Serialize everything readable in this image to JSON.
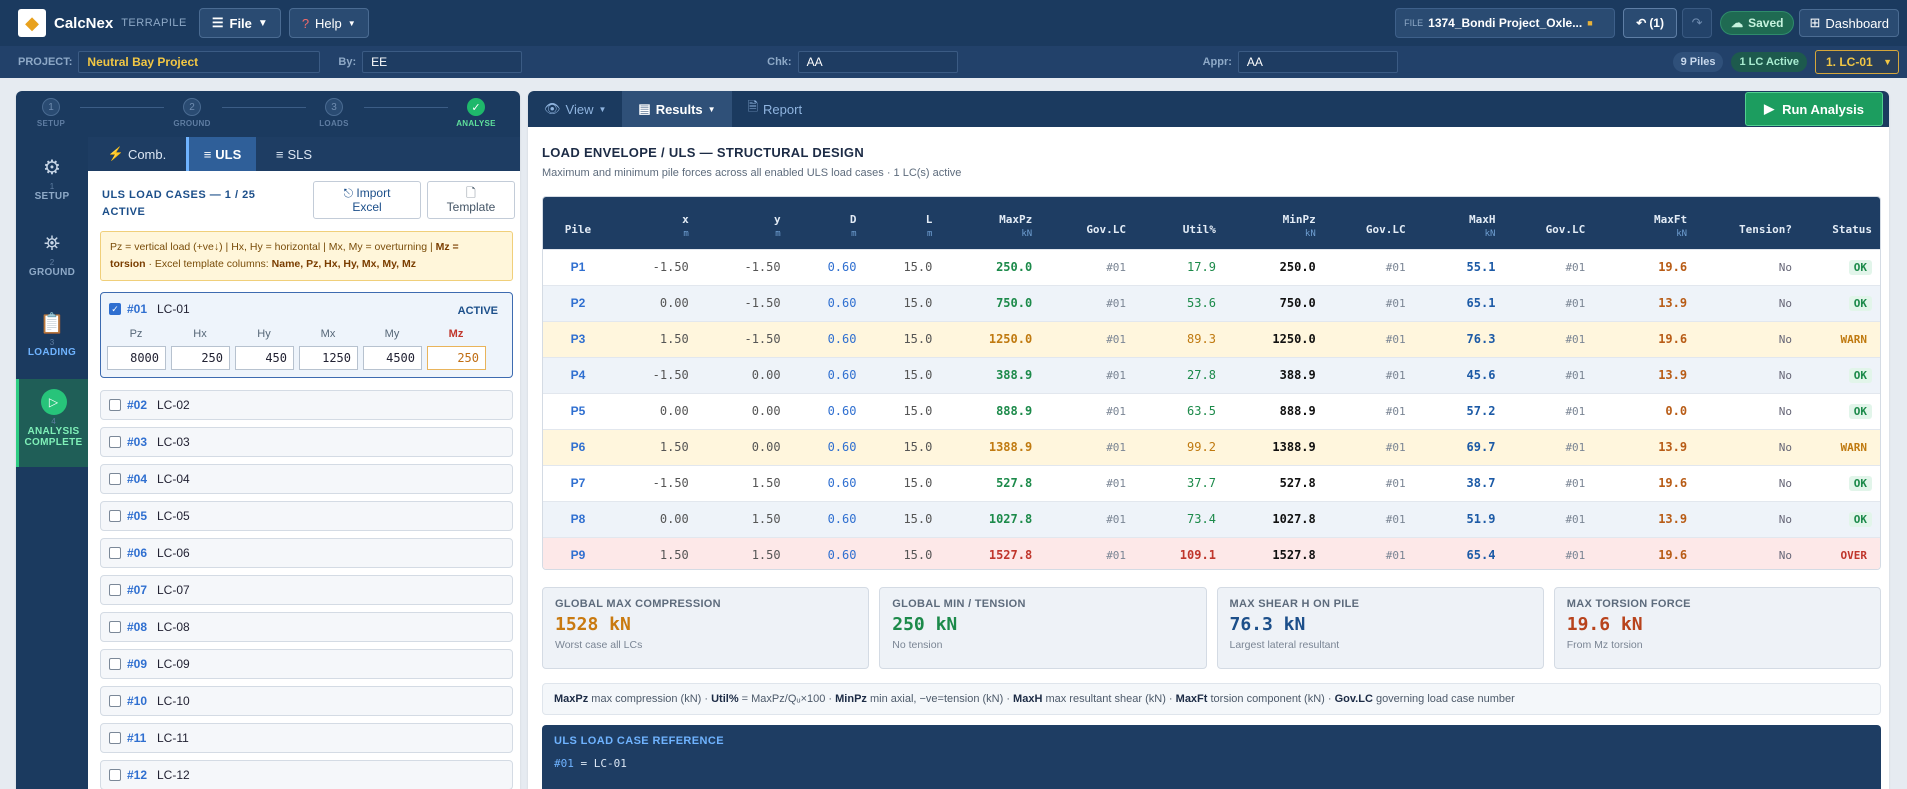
{
  "app": {
    "name": "CalcNex",
    "sub": "TERRAPILE",
    "file_menu": "File",
    "help_menu": "Help",
    "file_label": "FILE",
    "file_name": "1374_Bondi Project_Oxle...",
    "undo_label": "(1)",
    "saved_label": "Saved",
    "dashboard_label": "Dashboard"
  },
  "project": {
    "project_label": "PROJECT:",
    "project_value": "Neutral Bay Project",
    "by_label": "By:",
    "by_value": "EE",
    "chk_label": "Chk:",
    "chk_value": "AA",
    "appr_label": "Appr:",
    "appr_value": "AA",
    "piles_pill": "9 Piles",
    "lc_pill": "1 LC Active",
    "lc_select": "1. LC-01"
  },
  "stepper": {
    "steps": [
      {
        "num": "1",
        "label": "SETUP"
      },
      {
        "num": "2",
        "label": "GROUND"
      },
      {
        "num": "3",
        "label": "LOADS"
      },
      {
        "num": "✓",
        "label": "ANALYSE"
      }
    ]
  },
  "sidenav": [
    {
      "num": "1",
      "label": "SETUP"
    },
    {
      "num": "2",
      "label": "GROUND"
    },
    {
      "num": "3",
      "label": "LOADING"
    },
    {
      "num": "4",
      "label1": "ANALYSIS",
      "label2": "COMPLETE"
    }
  ],
  "loads": {
    "tab_comb": "Comb.",
    "tab_uls": "ULS",
    "tab_sls": "SLS",
    "section_title": "ULS LOAD CASES — 1 / 25 ACTIVE",
    "import_line1": "Import",
    "import_line2": "Excel",
    "template_label": "Template",
    "note_line1_a": "Pz = vertical load (+ve↓) | Hx, Hy = horizontal | Mx, My = overturning | ",
    "note_line1_b": "Mz =",
    "note_line2_a": "torsion",
    "note_line2_b": " · Excel template columns: ",
    "note_line2_c": "Name, Pz, Hx, Hy, Mx, My, Mz",
    "active_case": {
      "num": "#01",
      "name": "LC-01",
      "badge": "ACTIVE",
      "cols": [
        "Pz",
        "Hx",
        "Hy",
        "Mx",
        "My",
        "Mz"
      ],
      "values": [
        "8000",
        "250",
        "450",
        "1250",
        "4500",
        "250"
      ]
    },
    "cases": [
      {
        "num": "#02",
        "name": "LC-02"
      },
      {
        "num": "#03",
        "name": "LC-03"
      },
      {
        "num": "#04",
        "name": "LC-04"
      },
      {
        "num": "#05",
        "name": "LC-05"
      },
      {
        "num": "#06",
        "name": "LC-06"
      },
      {
        "num": "#07",
        "name": "LC-07"
      },
      {
        "num": "#08",
        "name": "LC-08"
      },
      {
        "num": "#09",
        "name": "LC-09"
      },
      {
        "num": "#10",
        "name": "LC-10"
      },
      {
        "num": "#11",
        "name": "LC-11"
      },
      {
        "num": "#12",
        "name": "LC-12"
      }
    ]
  },
  "results": {
    "tab_view": "View",
    "tab_results": "Results",
    "tab_report": "Report",
    "run_label": "Run Analysis",
    "title": "LOAD ENVELOPE / ULS — STRUCTURAL DESIGN",
    "subtitle": "Maximum and minimum pile forces across all enabled ULS load cases · 1 LC(s) active",
    "headers": [
      {
        "t": "Pile",
        "u": ""
      },
      {
        "t": "x",
        "u": "m"
      },
      {
        "t": "y",
        "u": "m"
      },
      {
        "t": "D",
        "u": "m"
      },
      {
        "t": "L",
        "u": "m"
      },
      {
        "t": "MaxPz",
        "u": "kN"
      },
      {
        "t": "Gov.LC",
        "u": ""
      },
      {
        "t": "Util%",
        "u": ""
      },
      {
        "t": "MinPz",
        "u": "kN"
      },
      {
        "t": "Gov.LC",
        "u": ""
      },
      {
        "t": "MaxH",
        "u": "kN"
      },
      {
        "t": "Gov.LC",
        "u": ""
      },
      {
        "t": "MaxFt",
        "u": "kN"
      },
      {
        "t": "Tension?",
        "u": ""
      },
      {
        "t": "Status",
        "u": ""
      }
    ],
    "rows": [
      {
        "pile": "P1",
        "x": "-1.50",
        "y": "-1.50",
        "d": "0.60",
        "l": "15.0",
        "maxpz": "250.0",
        "gov1": "#01",
        "util": "17.9",
        "minpz": "250.0",
        "gov2": "#01",
        "maxh": "55.1",
        "gov3": "#01",
        "maxft": "19.6",
        "tension": "No",
        "status": "OK",
        "level": "ok"
      },
      {
        "pile": "P2",
        "x": "0.00",
        "y": "-1.50",
        "d": "0.60",
        "l": "15.0",
        "maxpz": "750.0",
        "gov1": "#01",
        "util": "53.6",
        "minpz": "750.0",
        "gov2": "#01",
        "maxh": "65.1",
        "gov3": "#01",
        "maxft": "13.9",
        "tension": "No",
        "status": "OK",
        "level": "ok"
      },
      {
        "pile": "P3",
        "x": "1.50",
        "y": "-1.50",
        "d": "0.60",
        "l": "15.0",
        "maxpz": "1250.0",
        "gov1": "#01",
        "util": "89.3",
        "minpz": "1250.0",
        "gov2": "#01",
        "maxh": "76.3",
        "gov3": "#01",
        "maxft": "19.6",
        "tension": "No",
        "status": "WARN",
        "level": "warn"
      },
      {
        "pile": "P4",
        "x": "-1.50",
        "y": "0.00",
        "d": "0.60",
        "l": "15.0",
        "maxpz": "388.9",
        "gov1": "#01",
        "util": "27.8",
        "minpz": "388.9",
        "gov2": "#01",
        "maxh": "45.6",
        "gov3": "#01",
        "maxft": "13.9",
        "tension": "No",
        "status": "OK",
        "level": "ok"
      },
      {
        "pile": "P5",
        "x": "0.00",
        "y": "0.00",
        "d": "0.60",
        "l": "15.0",
        "maxpz": "888.9",
        "gov1": "#01",
        "util": "63.5",
        "minpz": "888.9",
        "gov2": "#01",
        "maxh": "57.2",
        "gov3": "#01",
        "maxft": "0.0",
        "tension": "No",
        "status": "OK",
        "level": "ok"
      },
      {
        "pile": "P6",
        "x": "1.50",
        "y": "0.00",
        "d": "0.60",
        "l": "15.0",
        "maxpz": "1388.9",
        "gov1": "#01",
        "util": "99.2",
        "minpz": "1388.9",
        "gov2": "#01",
        "maxh": "69.7",
        "gov3": "#01",
        "maxft": "13.9",
        "tension": "No",
        "status": "WARN",
        "level": "warn"
      },
      {
        "pile": "P7",
        "x": "-1.50",
        "y": "1.50",
        "d": "0.60",
        "l": "15.0",
        "maxpz": "527.8",
        "gov1": "#01",
        "util": "37.7",
        "minpz": "527.8",
        "gov2": "#01",
        "maxh": "38.7",
        "gov3": "#01",
        "maxft": "19.6",
        "tension": "No",
        "status": "OK",
        "level": "ok"
      },
      {
        "pile": "P8",
        "x": "0.00",
        "y": "1.50",
        "d": "0.60",
        "l": "15.0",
        "maxpz": "1027.8",
        "gov1": "#01",
        "util": "73.4",
        "minpz": "1027.8",
        "gov2": "#01",
        "maxh": "51.9",
        "gov3": "#01",
        "maxft": "13.9",
        "tension": "No",
        "status": "OK",
        "level": "ok"
      },
      {
        "pile": "P9",
        "x": "1.50",
        "y": "1.50",
        "d": "0.60",
        "l": "15.0",
        "maxpz": "1527.8",
        "gov1": "#01",
        "util": "109.1",
        "minpz": "1527.8",
        "gov2": "#01",
        "maxh": "65.4",
        "gov3": "#01",
        "maxft": "19.6",
        "tension": "No",
        "status": "OVER",
        "level": "over"
      }
    ],
    "cards": [
      {
        "head": "GLOBAL MAX COMPRESSION",
        "value": "1528 kN",
        "sub": "Worst case all LCs",
        "color": "#c97a10"
      },
      {
        "head": "GLOBAL MIN / TENSION",
        "value": "250 kN",
        "sub": "No tension",
        "color": "#1c8a4a"
      },
      {
        "head": "MAX SHEAR H ON PILE",
        "value": "76.3 kN",
        "sub": "Largest lateral resultant",
        "color": "#1c4f8a"
      },
      {
        "head": "MAX TORSION FORCE",
        "value": "19.6 kN",
        "sub": "From Mz torsion",
        "color": "#b8431c"
      }
    ],
    "legend": [
      {
        "b": "MaxPz",
        "t": " max compression (kN) · "
      },
      {
        "b": "Util%",
        "t": " = MaxPz/Qᵤ×100 · "
      },
      {
        "b": "MinPz",
        "t": " min axial, −ve=tension (kN) · "
      },
      {
        "b": "MaxH",
        "t": " max resultant shear (kN) · "
      },
      {
        "b": "MaxFt",
        "t": " torsion component (kN) · "
      },
      {
        "b": "Gov.LC",
        "t": " governing load case number"
      }
    ],
    "ref_title": "ULS LOAD CASE REFERENCE",
    "ref_num": "#01",
    "ref_eq": " = LC-01"
  }
}
